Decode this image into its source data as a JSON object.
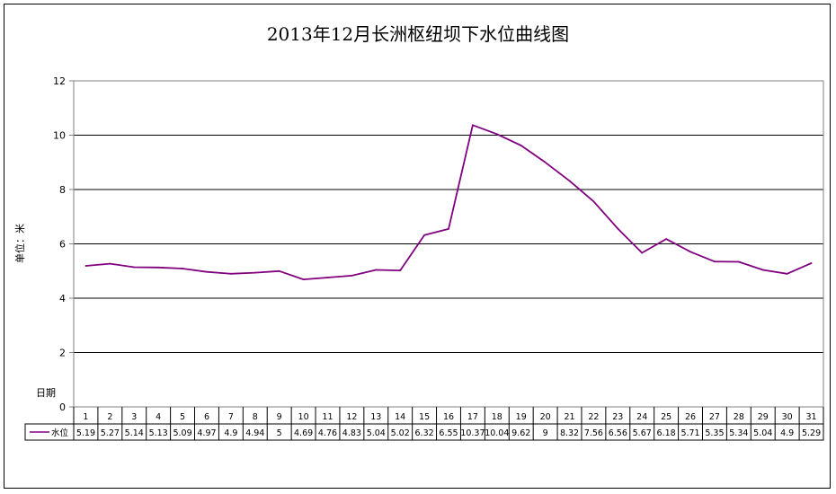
{
  "chart_data": {
    "type": "line",
    "title": "2013年12月长洲枢纽坝下水位曲线图",
    "ylabel": "单位：米",
    "xlabel": "日期",
    "ylim": [
      0,
      12
    ],
    "yticks": [
      "0",
      "2",
      "4",
      "6",
      "8",
      "10",
      "12"
    ],
    "grid": true,
    "categories": [
      "1",
      "2",
      "3",
      "4",
      "5",
      "6",
      "7",
      "8",
      "9",
      "10",
      "11",
      "12",
      "13",
      "14",
      "15",
      "16",
      "17",
      "18",
      "19",
      "20",
      "21",
      "22",
      "23",
      "24",
      "25",
      "26",
      "27",
      "28",
      "29",
      "30",
      "31"
    ],
    "series": [
      {
        "name": "水位",
        "color": "#800080",
        "values": [
          5.19,
          5.27,
          5.14,
          5.13,
          5.09,
          4.97,
          4.9,
          4.94,
          5,
          4.69,
          4.76,
          4.83,
          5.04,
          5.02,
          6.32,
          6.55,
          10.37,
          10.04,
          9.62,
          9,
          8.32,
          7.56,
          6.56,
          5.67,
          6.18,
          5.71,
          5.35,
          5.34,
          5.04,
          4.9,
          5.29
        ],
        "labels": [
          "5.19",
          "5.27",
          "5.14",
          "5.13",
          "5.09",
          "4.97",
          "4.9",
          "4.94",
          "5",
          "4.69",
          "4.76",
          "4.83",
          "5.04",
          "5.02",
          "6.32",
          "6.55",
          "10.37",
          "10.04",
          "9.62",
          "9",
          "8.32",
          "7.56",
          "6.56",
          "5.67",
          "6.18",
          "5.71",
          "5.35",
          "5.34",
          "5.04",
          "4.9",
          "5.29"
        ]
      }
    ]
  }
}
